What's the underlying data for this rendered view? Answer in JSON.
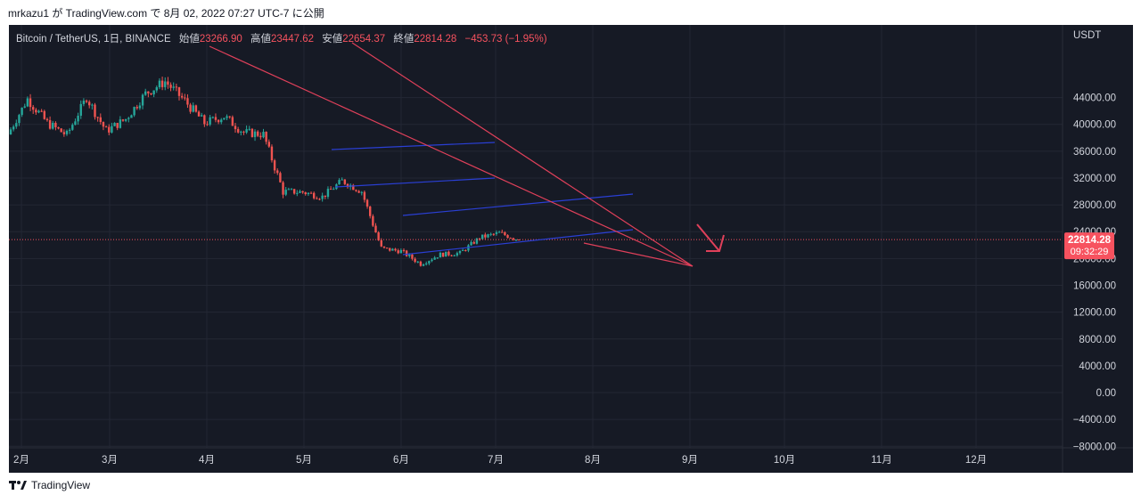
{
  "header": {
    "text": "mrkazu1 が TradingView.com で 8月 02, 2022 07:27 UTC-7 に公開"
  },
  "legend": {
    "symbol": "Bitcoin / TetherUS, 1日, BINANCE",
    "open_label": "始値",
    "open": "23266.90",
    "high_label": "高値",
    "high": "23447.62",
    "low_label": "安値",
    "low": "22654.37",
    "close_label": "終値",
    "close": "22814.28",
    "change": "−453.73 (−1.95%)"
  },
  "axis": {
    "currency": "USDT",
    "y_ticks": [
      "44000.00",
      "40000.00",
      "36000.00",
      "32000.00",
      "28000.00",
      "24000.00",
      "20000.00",
      "16000.00",
      "12000.00",
      "8000.00",
      "4000.00",
      "0.00",
      "−4000.00",
      "−8000.00"
    ],
    "x_ticks": [
      "2月",
      "3月",
      "4月",
      "5月",
      "6月",
      "7月",
      "8月",
      "9月",
      "10月",
      "11月",
      "12月"
    ]
  },
  "price_badge": {
    "price": "22814.28",
    "countdown": "09:32:29"
  },
  "colors": {
    "up": "#26a69a",
    "down": "#ef5350",
    "trendline": "#e0405a",
    "channel": "#2a3fd4",
    "badge": "#f7525f"
  },
  "footer": {
    "brand": "TradingView",
    "logo_icon": "tradingview-logo-icon"
  },
  "chart_data": {
    "type": "candlestick",
    "symbol": "Bitcoin / TetherUS",
    "interval": "1日",
    "exchange": "BINANCE",
    "ylim": [
      -10000,
      46000
    ],
    "last_price": 22814.28,
    "x": [
      "02-01",
      "02-08",
      "02-15",
      "02-22",
      "03-01",
      "03-08",
      "03-15",
      "03-22",
      "03-29",
      "04-05",
      "04-12",
      "04-19",
      "04-26",
      "05-03",
      "05-10",
      "05-17",
      "05-24",
      "05-31",
      "06-07",
      "06-14",
      "06-21",
      "06-28",
      "07-05",
      "07-12",
      "07-19",
      "07-26",
      "08-02"
    ],
    "close": [
      38500,
      43800,
      40200,
      38400,
      44000,
      39000,
      40800,
      44600,
      46400,
      43500,
      40200,
      41200,
      38800,
      38500,
      30000,
      29900,
      29200,
      31600,
      30000,
      21500,
      21100,
      19200,
      20600,
      20800,
      23100,
      23800,
      22814.28
    ]
  }
}
